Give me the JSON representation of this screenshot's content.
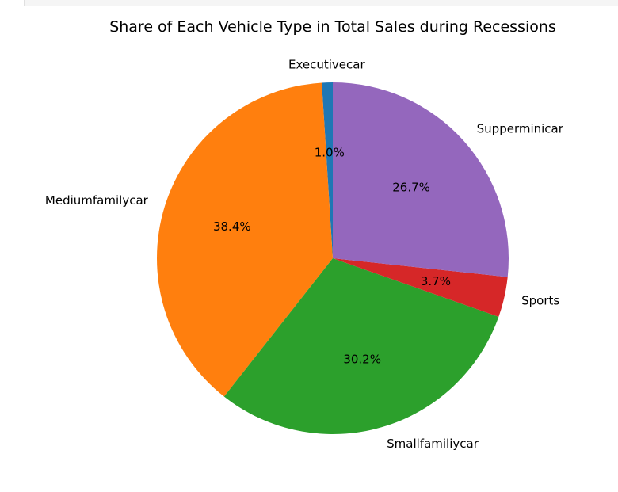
{
  "chart_data": {
    "type": "pie",
    "title": "Share of Each Vehicle Type in Total Sales during Recessions",
    "start_angle_deg": 90,
    "direction": "counterclockwise",
    "slices": [
      {
        "label": "Executivecar",
        "value": 1.0,
        "pct_label": "1.0%",
        "color": "#1f77b4"
      },
      {
        "label": "Mediumfamilycar",
        "value": 38.4,
        "pct_label": "38.4%",
        "color": "#ff7f0e"
      },
      {
        "label": "Smallfamiliycar",
        "value": 30.2,
        "pct_label": "30.2%",
        "color": "#2ca02c"
      },
      {
        "label": "Sports",
        "value": 3.7,
        "pct_label": "3.7%",
        "color": "#d62728"
      },
      {
        "label": "Supperminicar",
        "value": 26.7,
        "pct_label": "26.7%",
        "color": "#9467bd"
      }
    ]
  }
}
